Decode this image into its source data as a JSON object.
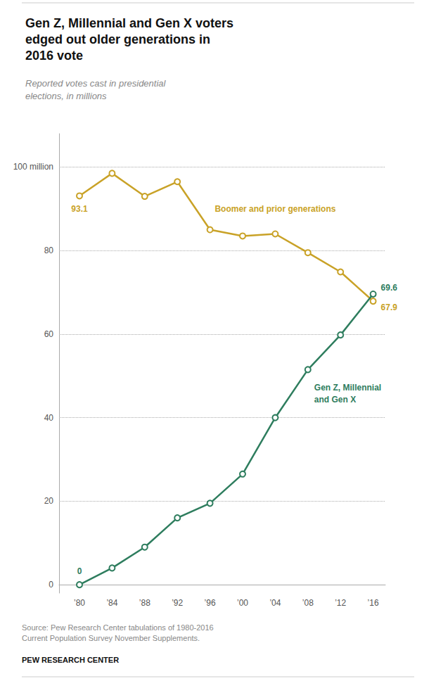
{
  "chart_data": {
    "type": "line",
    "title": "Gen Z, Millennial and Gen X voters\nedged out older generations in\n2016 vote",
    "subtitle": "Reported votes cast in presidential\nelections, in millions",
    "x": [
      1980,
      1984,
      1988,
      1992,
      1996,
      2000,
      2004,
      2008,
      2012,
      2016
    ],
    "xlim": [
      1977.5,
      2017.5
    ],
    "xticks": [
      {
        "value": 1980,
        "label": "’80"
      },
      {
        "value": 1984,
        "label": "’84"
      },
      {
        "value": 1988,
        "label": "’88"
      },
      {
        "value": 1992,
        "label": "’92"
      },
      {
        "value": 1996,
        "label": "’96"
      },
      {
        "value": 2000,
        "label": "’00"
      },
      {
        "value": 2004,
        "label": "’04"
      },
      {
        "value": 2008,
        "label": "’08"
      },
      {
        "value": 2012,
        "label": "’12"
      },
      {
        "value": 2016,
        "label": "’16"
      }
    ],
    "ylim": [
      -2,
      108
    ],
    "yticks": [
      0,
      20,
      40,
      60,
      80,
      {
        "value": 100,
        "label": "100 million"
      }
    ],
    "grid": true,
    "series": [
      {
        "name": "Boomer and prior generations",
        "color": "#C9A227",
        "marker": "circle",
        "values": [
          93.1,
          98.5,
          93.0,
          96.5,
          85.0,
          83.5,
          84.0,
          79.5,
          74.9,
          67.9
        ]
      },
      {
        "name": "Gen Z, Millennial\nand Gen X",
        "color": "#2E7D5E",
        "marker": "circle",
        "values": [
          0.0,
          4.0,
          9.0,
          16.0,
          19.5,
          26.5,
          40.0,
          51.5,
          59.8,
          69.6
        ]
      }
    ],
    "annotations": [
      {
        "text": "93.1",
        "x": 1980,
        "y": 93.1
      },
      {
        "text": "0",
        "x": 1980,
        "y": 0.0
      },
      {
        "text": "69.6",
        "x": 2016,
        "y": 69.6
      },
      {
        "text": "67.9",
        "x": 2016,
        "y": 67.9
      }
    ],
    "source": "Source: Pew Research Center tabulations of 1980-2016\nCurrent Population Survey November Supplements.",
    "footer": "PEW RESEARCH CENTER"
  }
}
